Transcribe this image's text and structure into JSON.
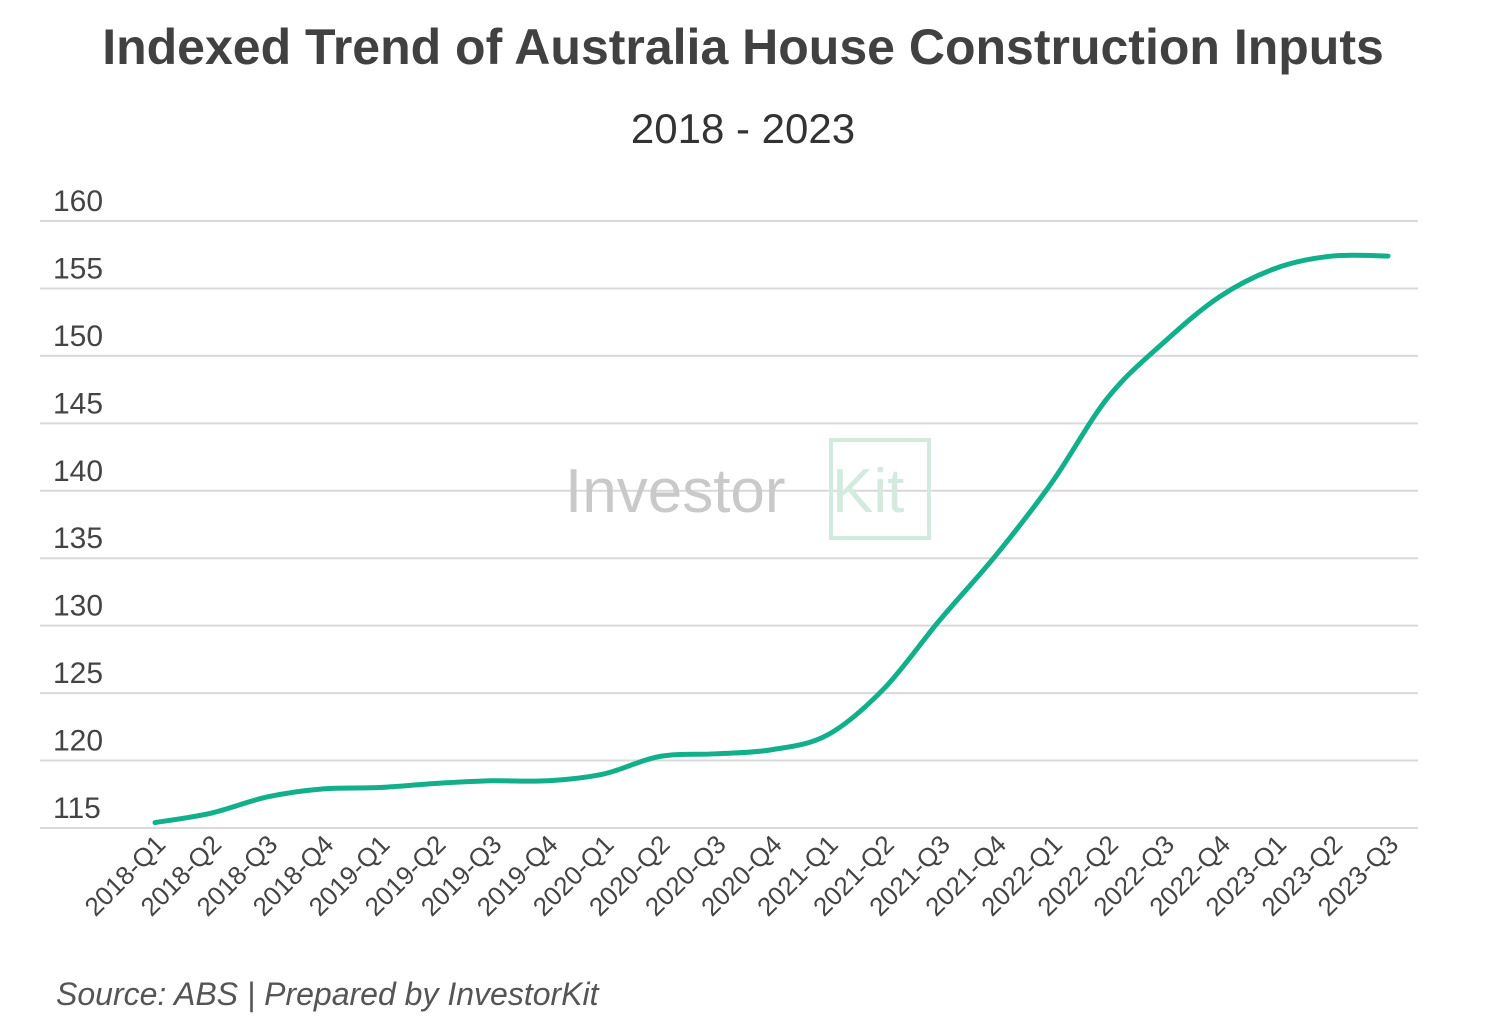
{
  "chart_data": {
    "type": "line",
    "title": "Indexed Trend of Australia House Construction Inputs",
    "subtitle": "2018 - 2023",
    "xlabel": "",
    "ylabel": "",
    "ylim": [
      115,
      160
    ],
    "yticks": [
      115,
      120,
      125,
      130,
      135,
      140,
      145,
      150,
      155,
      160
    ],
    "grid": true,
    "legend": "none",
    "line_color": "#12b08a",
    "categories": [
      "2018-Q1",
      "2018-Q2",
      "2018-Q3",
      "2018-Q4",
      "2019-Q1",
      "2019-Q2",
      "2019-Q3",
      "2019-Q4",
      "2020-Q1",
      "2020-Q2",
      "2020-Q3",
      "2020-Q4",
      "2021-Q1",
      "2021-Q2",
      "2021-Q3",
      "2021-Q4",
      "2022-Q1",
      "2022-Q2",
      "2022-Q3",
      "2022-Q4",
      "2023-Q1",
      "2023-Q2",
      "2023-Q3"
    ],
    "values": [
      115.4,
      116.1,
      117.3,
      117.9,
      118.0,
      118.3,
      118.5,
      118.5,
      119.0,
      120.3,
      120.5,
      120.8,
      121.9,
      125.3,
      130.4,
      135.2,
      140.6,
      146.9,
      151.0,
      154.4,
      156.5,
      157.4,
      157.4
    ]
  },
  "watermark": "InvestorKit",
  "source": "Source: ABS | Prepared by InvestorKit"
}
